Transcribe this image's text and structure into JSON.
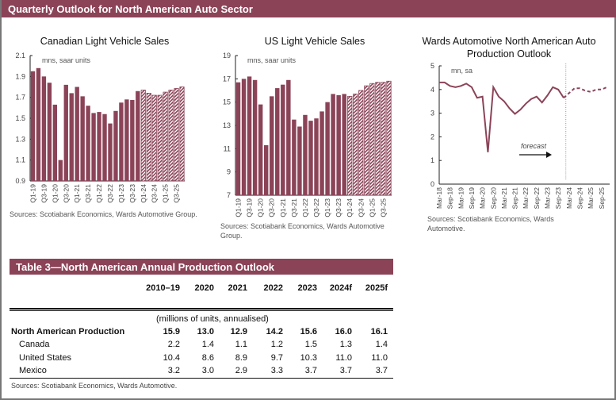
{
  "header": {
    "title": "Quarterly Outlook for North American Auto Sector"
  },
  "colors": {
    "brand": "#8b4358",
    "forecast_hatch": "#8b4358 diagonal stripes on white"
  },
  "chart_data": [
    {
      "type": "bar",
      "title": "Canadian Light Vehicle Sales",
      "unit_label": "mns, saar units",
      "ylim": [
        0.9,
        2.1
      ],
      "yticks": [
        "0.9",
        "1.1",
        "1.3",
        "1.5",
        "1.7",
        "1.9",
        "2.1"
      ],
      "categories": [
        "Q1-19",
        "Q2-19",
        "Q3-19",
        "Q4-19",
        "Q1-20",
        "Q2-20",
        "Q3-20",
        "Q4-20",
        "Q1-21",
        "Q2-21",
        "Q3-21",
        "Q4-21",
        "Q1-22",
        "Q2-22",
        "Q3-22",
        "Q4-22",
        "Q1-23",
        "Q2-23",
        "Q3-23",
        "Q4-23",
        "Q1-24",
        "Q2-24",
        "Q3-24",
        "Q4-24",
        "Q1-25",
        "Q2-25",
        "Q3-25",
        "Q4-25"
      ],
      "xtick_labels": [
        "Q1-19",
        "Q3-19",
        "Q1-20",
        "Q3-20",
        "Q1-21",
        "Q3-21",
        "Q1-22",
        "Q3-22",
        "Q1-23",
        "Q3-23",
        "Q1-24",
        "Q3-24",
        "Q1-25",
        "Q3-25"
      ],
      "values": [
        1.95,
        1.98,
        1.9,
        1.84,
        1.63,
        1.1,
        1.82,
        1.74,
        1.8,
        1.71,
        1.62,
        1.55,
        1.56,
        1.54,
        1.45,
        1.57,
        1.65,
        1.68,
        1.675,
        1.76,
        1.77,
        1.74,
        1.72,
        1.72,
        1.75,
        1.77,
        1.785,
        1.8
      ],
      "forecast_from": "Q1-24",
      "source": "Sources: Scotiabank Economics, Wards Automotive Group."
    },
    {
      "type": "bar",
      "title": "US Light Vehicle Sales",
      "unit_label": "mns, saar units",
      "ylim": [
        7,
        19
      ],
      "yticks": [
        "7",
        "9",
        "11",
        "13",
        "15",
        "17",
        "19"
      ],
      "categories": [
        "Q1-19",
        "Q2-19",
        "Q3-19",
        "Q4-19",
        "Q1-20",
        "Q2-20",
        "Q3-20",
        "Q4-20",
        "Q1-21",
        "Q2-21",
        "Q3-21",
        "Q4-21",
        "Q1-22",
        "Q2-22",
        "Q3-22",
        "Q4-22",
        "Q1-23",
        "Q2-23",
        "Q3-23",
        "Q4-23",
        "Q1-24",
        "Q2-24",
        "Q3-24",
        "Q4-24",
        "Q1-25",
        "Q2-25",
        "Q3-25",
        "Q4-25"
      ],
      "xtick_labels": [
        "Q1-19",
        "Q3-19",
        "Q1-20",
        "Q3-20",
        "Q1-21",
        "Q3-21",
        "Q1-22",
        "Q3-22",
        "Q1-23",
        "Q3-23",
        "Q1-24",
        "Q3-24",
        "Q1-25",
        "Q3-25"
      ],
      "values": [
        16.7,
        17.0,
        17.2,
        16.9,
        14.8,
        11.3,
        15.5,
        16.2,
        16.5,
        16.9,
        13.5,
        12.9,
        13.9,
        13.4,
        13.6,
        14.2,
        15.0,
        15.7,
        15.6,
        15.7,
        15.5,
        15.7,
        16.0,
        16.4,
        16.6,
        16.7,
        16.7,
        16.8
      ],
      "forecast_from": "Q1-24",
      "source": "Sources: Scotiabank Economics, Wards Automotive Group."
    },
    {
      "type": "line",
      "title": "Wards Automotive North American Auto Production Outlook",
      "unit_label": "mn, sa",
      "ylim": [
        0,
        5
      ],
      "yticks": [
        "0",
        "1",
        "2",
        "3",
        "4",
        "5"
      ],
      "x": [
        "Mar-18",
        "Jun-18",
        "Sep-18",
        "Dec-18",
        "Mar-19",
        "Jun-19",
        "Sep-19",
        "Dec-19",
        "Mar-20",
        "Jun-20",
        "Sep-20",
        "Dec-20",
        "Mar-21",
        "Jun-21",
        "Sep-21",
        "Dec-21",
        "Mar-22",
        "Jun-22",
        "Sep-22",
        "Dec-22",
        "Mar-23",
        "Jun-23",
        "Sep-23",
        "Dec-23",
        "Mar-24",
        "Jun-24",
        "Sep-24",
        "Dec-24",
        "Mar-25",
        "Jun-25",
        "Sep-25",
        "Dec-25"
      ],
      "xtick_labels": [
        "Mar-18",
        "Sep-18",
        "Mar-19",
        "Sep-19",
        "Mar-20",
        "Sep-20",
        "Mar-21",
        "Sep-21",
        "Mar-22",
        "Sep-22",
        "Mar-23",
        "Sep-23",
        "Mar-24",
        "Sep-24",
        "Mar-25",
        "Sep-25"
      ],
      "values": [
        4.3,
        4.3,
        4.15,
        4.1,
        4.15,
        4.25,
        4.1,
        3.65,
        3.7,
        1.35,
        4.1,
        3.7,
        3.5,
        3.2,
        2.97,
        3.15,
        3.4,
        3.6,
        3.7,
        3.45,
        3.75,
        4.1,
        4.0,
        3.65,
        3.85,
        4.05,
        4.05,
        3.95,
        3.9,
        4.0,
        4.0,
        4.1
      ],
      "forecast_from": "Mar-24",
      "annotation": "forecast",
      "source": "Sources: Scotiabank Economics, Wards Automotive."
    }
  ],
  "table": {
    "title": "Table 3—North American Annual Production Outlook",
    "columns": [
      "2010–19",
      "2020",
      "2021",
      "2022",
      "2023",
      "2024f",
      "2025f"
    ],
    "units": "(millions of units, annualised)",
    "rows": [
      {
        "label": "North American Production",
        "values": [
          "15.9",
          "13.0",
          "12.9",
          "14.2",
          "15.6",
          "16.0",
          "16.1"
        ],
        "bold": true
      },
      {
        "label": "Canada",
        "values": [
          "2.2",
          "1.4",
          "1.1",
          "1.2",
          "1.5",
          "1.3",
          "1.4"
        ]
      },
      {
        "label": "United States",
        "values": [
          "10.4",
          "8.6",
          "8.9",
          "9.7",
          "10.3",
          "11.0",
          "11.0"
        ]
      },
      {
        "label": "Mexico",
        "values": [
          "3.2",
          "3.0",
          "2.9",
          "3.3",
          "3.7",
          "3.7",
          "3.7"
        ]
      }
    ],
    "source": "Sources: Scotiabank Economics, Wards Automotive."
  }
}
